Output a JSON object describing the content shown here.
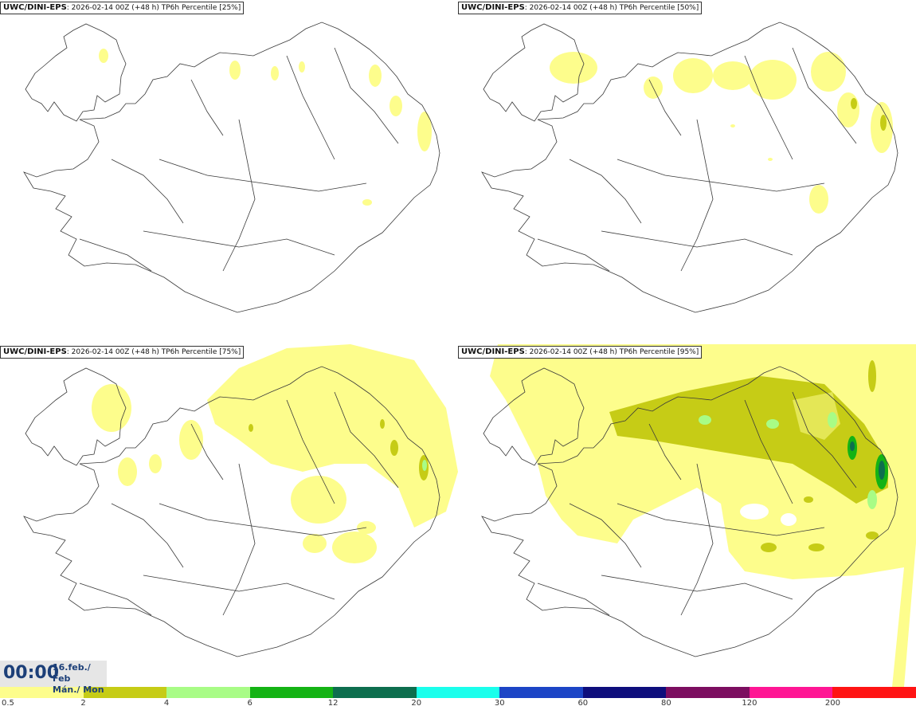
{
  "panels": [
    {
      "model": "UWC/DINI-EPS",
      "info": ": 2026-02-14 00Z (+48 h) TP6h Percentile [25%]"
    },
    {
      "model": "UWC/DINI-EPS",
      "info": ": 2026-02-14 00Z (+48 h) TP6h Percentile [50%]"
    },
    {
      "model": "UWC/DINI-EPS",
      "info": ": 2026-02-14 00Z (+48 h) TP6h Percentile [75%]"
    },
    {
      "model": "UWC/DINI-EPS",
      "info": ": 2026-02-14 00Z (+48 h) TP6h Percentile [95%]"
    }
  ],
  "valid_time": {
    "time": "00:00",
    "date_line1": "16.feb./ Feb",
    "date_line2": "Mán./ Mon"
  },
  "legend": {
    "ticks": [
      "0.5",
      "2",
      "4",
      "6",
      "12",
      "20",
      "30",
      "60",
      "80",
      "120",
      "200"
    ],
    "colors": [
      "#fdfd8c",
      "#c6cc16",
      "#a8fc86",
      "#14b314",
      "#0d6e4e",
      "#1affec",
      "#1c45c6",
      "#0e0e7c",
      "#7c0e60",
      "#ff1694",
      "#ff1414"
    ]
  }
}
